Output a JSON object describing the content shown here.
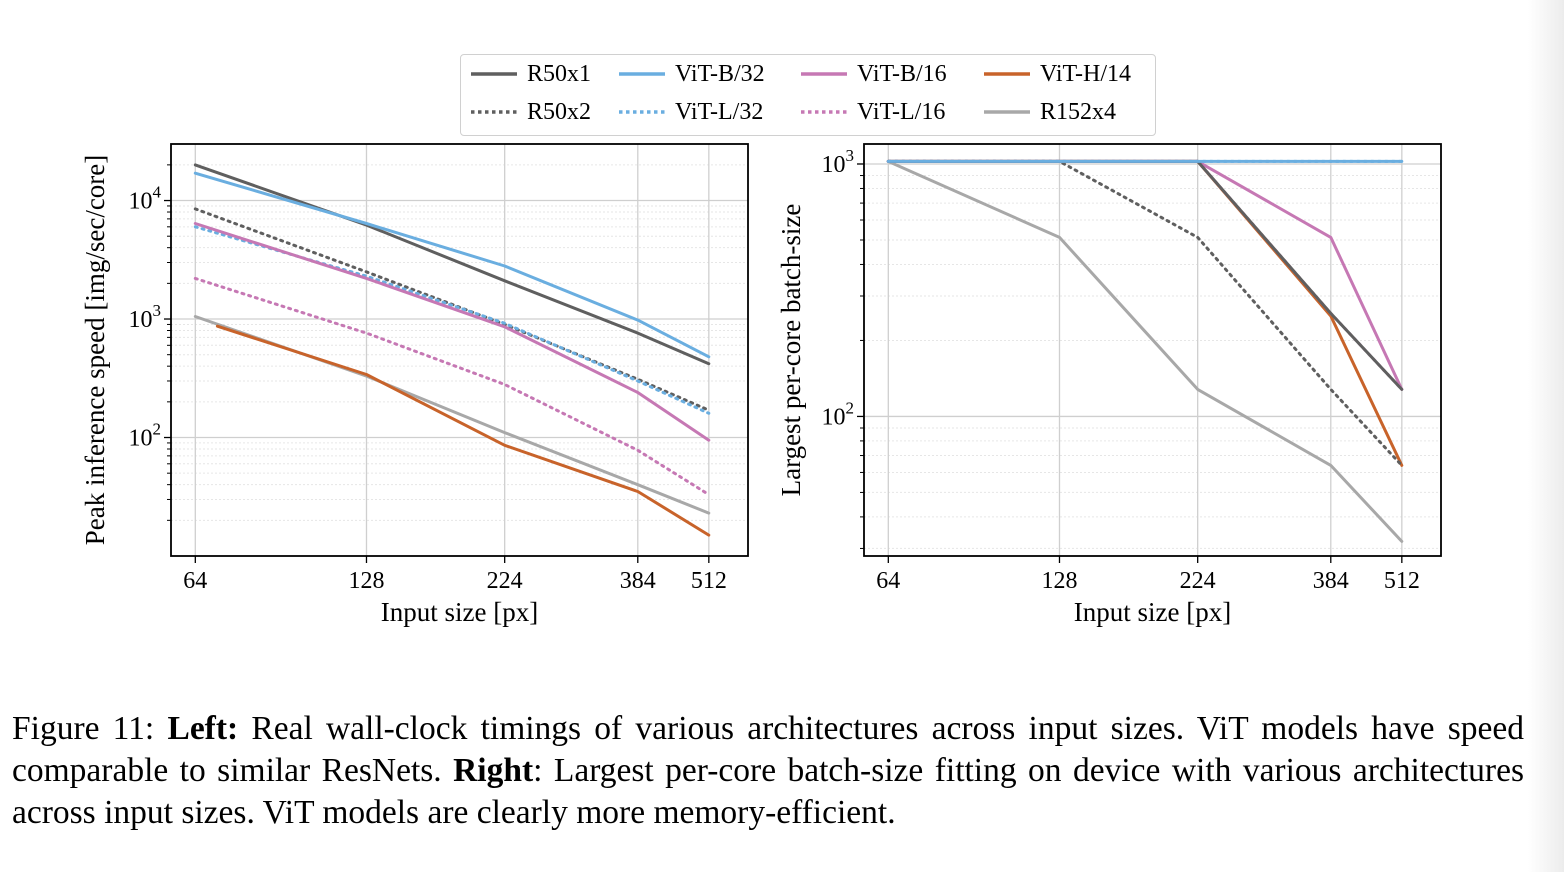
{
  "legend": {
    "items": [
      {
        "key": "R50x1",
        "label": "R50x1",
        "color": "#5f5f5f",
        "dash": "solid"
      },
      {
        "key": "ViT-B/32",
        "label": "ViT-B/32",
        "color": "#6aaee0",
        "dash": "solid"
      },
      {
        "key": "ViT-B/16",
        "label": "ViT-B/16",
        "color": "#c678b4",
        "dash": "solid"
      },
      {
        "key": "ViT-H/14",
        "label": "ViT-H/14",
        "color": "#c8632a",
        "dash": "solid"
      },
      {
        "key": "R50x2",
        "label": "R50x2",
        "color": "#5f5f5f",
        "dash": "dotted"
      },
      {
        "key": "ViT-L/32",
        "label": "ViT-L/32",
        "color": "#6aaee0",
        "dash": "dotted"
      },
      {
        "key": "ViT-L/16",
        "label": "ViT-L/16",
        "color": "#c678b4",
        "dash": "dotted"
      },
      {
        "key": "R152x4",
        "label": "R152x4",
        "color": "#a8a8a8",
        "dash": "solid"
      }
    ]
  },
  "chart_data": [
    {
      "type": "line",
      "title": "",
      "xlabel": "Input size [px]",
      "ylabel": "Peak inference speed [img/sec/core]",
      "x_scale": "log",
      "y_scale": "log",
      "xlim": [
        58,
        600
      ],
      "ylim": [
        10,
        30000
      ],
      "x_ticks": [
        64,
        128,
        224,
        384,
        512
      ],
      "y_ticks": [
        {
          "value": 100,
          "label": "10",
          "exp": "2"
        },
        {
          "value": 1000,
          "label": "10",
          "exp": "3"
        },
        {
          "value": 10000,
          "label": "10",
          "exp": "4"
        }
      ],
      "grid": true,
      "series": [
        {
          "name": "R50x1",
          "x": [
            64,
            128,
            224,
            384,
            512
          ],
          "y": [
            20000,
            6200,
            2100,
            760,
            420
          ]
        },
        {
          "name": "ViT-B/32",
          "x": [
            64,
            128,
            224,
            384,
            512
          ],
          "y": [
            17000,
            6400,
            2800,
            980,
            480
          ]
        },
        {
          "name": "ViT-B/16",
          "x": [
            64,
            128,
            224,
            384,
            512
          ],
          "y": [
            6400,
            2200,
            860,
            240,
            95
          ]
        },
        {
          "name": "ViT-H/14",
          "x": [
            70,
            128,
            224,
            384,
            512
          ],
          "y": [
            870,
            340,
            86,
            35,
            15
          ]
        },
        {
          "name": "R50x2",
          "x": [
            64,
            128,
            224,
            384,
            512
          ],
          "y": [
            8500,
            2500,
            900,
            310,
            170
          ]
        },
        {
          "name": "ViT-L/32",
          "x": [
            64,
            128,
            224,
            384,
            512
          ],
          "y": [
            6000,
            2300,
            920,
            300,
            160
          ]
        },
        {
          "name": "ViT-L/16",
          "x": [
            64,
            128,
            224,
            384,
            512
          ],
          "y": [
            2200,
            760,
            280,
            78,
            33
          ]
        },
        {
          "name": "R152x4",
          "x": [
            64,
            128,
            224,
            384,
            512
          ],
          "y": [
            1050,
            330,
            110,
            40,
            23
          ]
        }
      ]
    },
    {
      "type": "line",
      "title": "",
      "xlabel": "Input size [px]",
      "ylabel": "Largest per-core batch-size",
      "x_scale": "log",
      "y_scale": "log",
      "xlim": [
        58,
        600
      ],
      "ylim": [
        28,
        1200
      ],
      "x_ticks": [
        64,
        128,
        224,
        384,
        512
      ],
      "y_ticks": [
        {
          "value": 100,
          "label": "10",
          "exp": "2"
        },
        {
          "value": 1000,
          "label": "10",
          "exp": "3"
        }
      ],
      "grid": true,
      "series": [
        {
          "name": "R50x1",
          "x": [
            64,
            128,
            224,
            384,
            512
          ],
          "y": [
            1024,
            1024,
            1024,
            256,
            128
          ]
        },
        {
          "name": "ViT-B/32",
          "x": [
            64,
            128,
            224,
            384,
            512
          ],
          "y": [
            1024,
            1024,
            1024,
            1024,
            1024
          ]
        },
        {
          "name": "ViT-B/16",
          "x": [
            64,
            128,
            224,
            384,
            512
          ],
          "y": [
            1024,
            1024,
            1024,
            512,
            128
          ]
        },
        {
          "name": "ViT-H/14",
          "x": [
            64,
            128,
            224,
            384,
            512
          ],
          "y": [
            1024,
            1024,
            1024,
            250,
            64
          ]
        },
        {
          "name": "R50x2",
          "x": [
            64,
            128,
            224,
            384,
            512
          ],
          "y": [
            1024,
            1024,
            512,
            128,
            64
          ]
        },
        {
          "name": "ViT-L/32",
          "x": [
            64,
            128,
            224,
            384,
            512
          ],
          "y": [
            1024,
            1024,
            1024,
            1024,
            1024
          ]
        },
        {
          "name": "ViT-L/16",
          "x": [
            64,
            128,
            224,
            384,
            512
          ],
          "y": [
            1024,
            1024,
            1024,
            256,
            128
          ]
        },
        {
          "name": "R152x4",
          "x": [
            64,
            128,
            224,
            384,
            512
          ],
          "y": [
            1024,
            512,
            128,
            64,
            32
          ]
        }
      ]
    }
  ],
  "caption": {
    "prefix": "Figure 11: ",
    "left_label": "Left:",
    "left_text": " Real wall-clock timings of various architectures across input sizes.  ViT models have speed comparable to similar ResNets. ",
    "right_label": "Right",
    "right_text": ": Largest per-core batch-size fitting on device with various architectures across input sizes. ViT models are clearly more memory-efficient."
  }
}
